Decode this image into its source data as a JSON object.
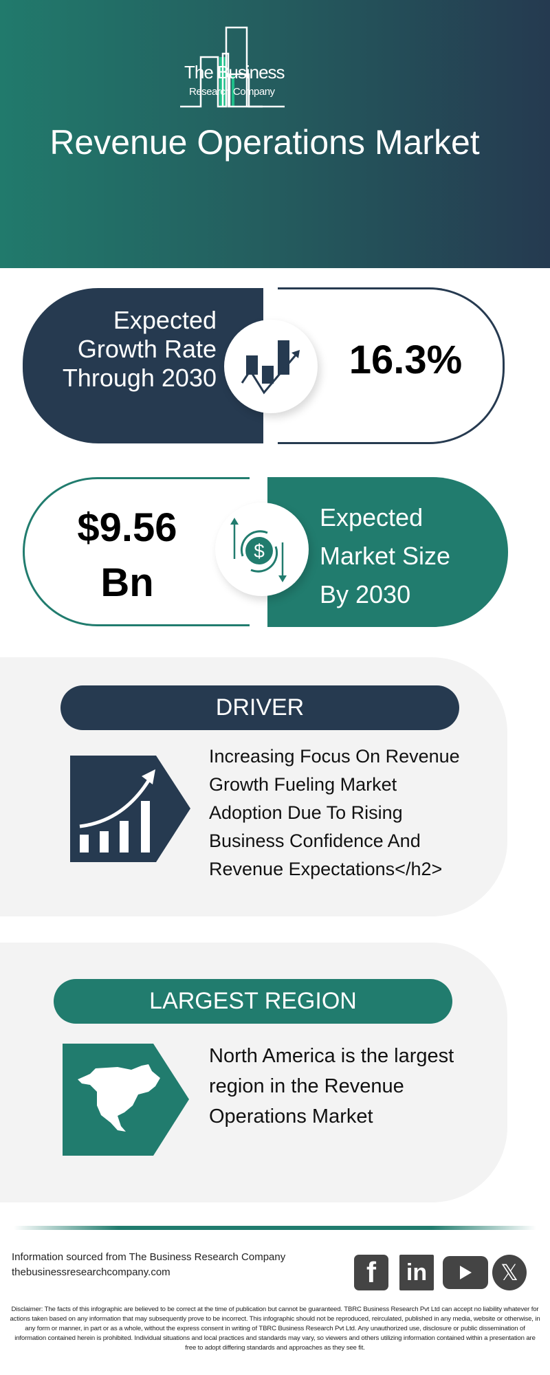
{
  "header": {
    "logo_line1": "The Business",
    "logo_line2": "Research Company",
    "title": "Revenue Operations Market"
  },
  "growth": {
    "label_lines": [
      "Expected",
      "Growth Rate",
      "Through 2030"
    ],
    "value": "16.3%",
    "icon": "growth-chart-icon"
  },
  "market_size": {
    "value_lines": [
      "$9.56",
      "Bn"
    ],
    "label_lines": [
      "Expected",
      "Market Size",
      "By 2030"
    ],
    "icon": "dollar-cycle-icon"
  },
  "driver": {
    "heading": "DRIVER",
    "text_lines": [
      "Increasing Focus On Revenue",
      "Growth Fueling Market",
      "Adoption Due To Rising",
      "Business Confidence And",
      "Revenue Expectations</h2>"
    ],
    "icon": "bar-chart-arrow-icon"
  },
  "region": {
    "heading": "LARGEST REGION",
    "text_lines": [
      "North America is the largest",
      "region in the Revenue",
      "Operations Market"
    ],
    "icon": "north-america-map-icon"
  },
  "footer": {
    "source_line": "Information sourced from The Business Research Company",
    "website": "thebusinessresearchcompany.com",
    "social": [
      "facebook-icon",
      "linkedin-icon",
      "youtube-icon",
      "x-icon"
    ],
    "disclaimer": "Disclaimer: The facts of this infographic are believed to be correct at the time of publication but cannot be guaranteed. TBRC Business Research Pvt Ltd can accept no liability whatever for actions taken based on any information that may subsequently prove to be incorrect. This infographic should not be reproduced, reirculated, published in any media, website or otherwise, in any form or manner, in part or as a whole, without the express consent in writing of TBRC Business Research Pvt Ltd. Any unauthorized use, disclosure or public dissemination of information contained herein is prohibited. Individual situations and local practices and standards may vary, so viewers and others utilizing information contained within a presentation are free to adopt differing standards and approaches as they see fit."
  },
  "colors": {
    "navy": "#263a50",
    "teal": "#217c6e",
    "panel": "#f3f3f3",
    "logo_accent": "#1fbf8a"
  }
}
